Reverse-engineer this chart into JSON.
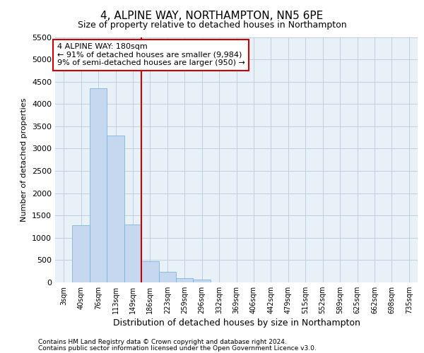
{
  "title": "4, ALPINE WAY, NORTHAMPTON, NN5 6PE",
  "subtitle": "Size of property relative to detached houses in Northampton",
  "xlabel": "Distribution of detached houses by size in Northampton",
  "ylabel": "Number of detached properties",
  "footer_line1": "Contains HM Land Registry data © Crown copyright and database right 2024.",
  "footer_line2": "Contains public sector information licensed under the Open Government Licence v3.0.",
  "bar_labels": [
    "3sqm",
    "40sqm",
    "76sqm",
    "113sqm",
    "149sqm",
    "186sqm",
    "223sqm",
    "259sqm",
    "296sqm",
    "332sqm",
    "369sqm",
    "406sqm",
    "442sqm",
    "479sqm",
    "515sqm",
    "552sqm",
    "589sqm",
    "625sqm",
    "662sqm",
    "698sqm",
    "735sqm"
  ],
  "bar_values": [
    0,
    1280,
    4350,
    3300,
    1300,
    480,
    240,
    100,
    60,
    0,
    0,
    0,
    0,
    0,
    0,
    0,
    0,
    0,
    0,
    0,
    0
  ],
  "bar_color": "#c5d8f0",
  "bar_edge_color": "#6baed6",
  "ylim_max": 5500,
  "yticks": [
    0,
    500,
    1000,
    1500,
    2000,
    2500,
    3000,
    3500,
    4000,
    4500,
    5000,
    5500
  ],
  "vline_x": 4.5,
  "vline_color": "#cc0000",
  "annotation_line1": "4 ALPINE WAY: 180sqm",
  "annotation_line2": "← 91% of detached houses are smaller (9,984)",
  "annotation_line3": "9% of semi-detached houses are larger (950) →",
  "annotation_box_facecolor": "#ffffff",
  "annotation_box_edgecolor": "#cc0000",
  "grid_color": "#c0cfe0",
  "figure_bg": "#ffffff",
  "axes_bg": "#e8f0f8",
  "title_fontsize": 11,
  "subtitle_fontsize": 9,
  "ylabel_fontsize": 8,
  "xlabel_fontsize": 9,
  "tick_fontsize": 8,
  "xtick_fontsize": 7,
  "footer_fontsize": 6.5,
  "annotation_fontsize": 8
}
